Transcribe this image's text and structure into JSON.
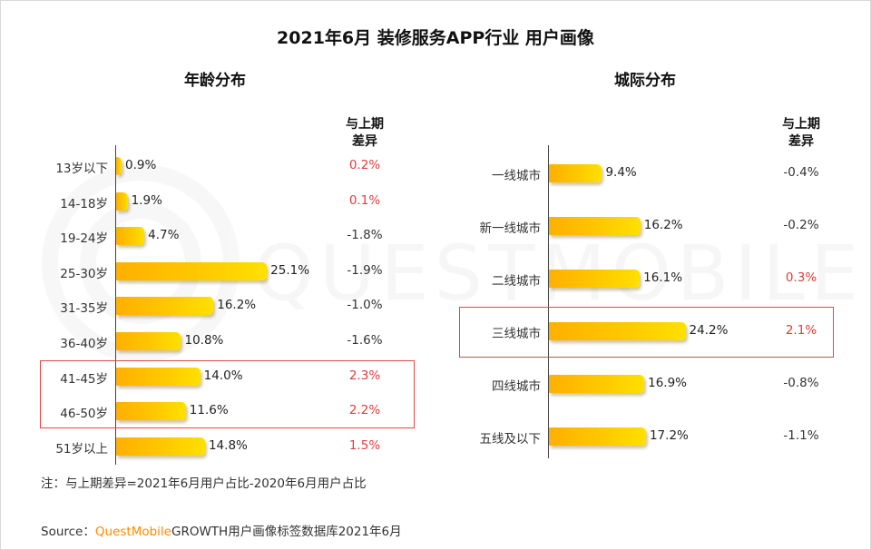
{
  "title": "2021年6月 装修服务APP行业 用户画像",
  "note": "注：与上期差异=2021年6月用户占比-2020年6月用户占比",
  "source": {
    "prefix": "Source：",
    "brand": "QuestMobile",
    "text": "GROWTH用户画像标签数据库2021年6月"
  },
  "watermark": "QUESTMOBILE",
  "colors": {
    "bar_start": "#ffb000",
    "bar_end": "#ffe000",
    "negative": "#333333",
    "positive": "#e03c3c",
    "highlight_border": "#e04848"
  },
  "chart_data": [
    {
      "type": "bar",
      "orientation": "horizontal",
      "title": "年龄分布",
      "diff_header": [
        "与上期",
        "差异"
      ],
      "categories": [
        "13岁以下",
        "14-18岁",
        "19-24岁",
        "25-30岁",
        "31-35岁",
        "36-40岁",
        "41-45岁",
        "46-50岁",
        "51岁以上"
      ],
      "values": [
        0.9,
        1.9,
        4.7,
        25.1,
        16.2,
        10.8,
        14.0,
        11.6,
        14.8
      ],
      "value_labels": [
        "0.9%",
        "1.9%",
        "4.7%",
        "25.1%",
        "16.2%",
        "10.8%",
        "14.0%",
        "11.6%",
        "14.8%"
      ],
      "diff_values": [
        0.2,
        0.1,
        -1.8,
        -1.9,
        -1.0,
        -1.6,
        2.3,
        2.2,
        1.5
      ],
      "diff_labels": [
        "0.2%",
        "0.1%",
        "-1.8%",
        "-1.9%",
        "-1.0%",
        "-1.6%",
        "2.3%",
        "2.2%",
        "1.5%"
      ],
      "highlighted": [
        "41-45岁",
        "46-50岁"
      ],
      "xlim": [
        0,
        30
      ],
      "unit": "%"
    },
    {
      "type": "bar",
      "orientation": "horizontal",
      "title": "城际分布",
      "diff_header": [
        "与上期",
        "差异"
      ],
      "categories": [
        "一线城市",
        "新一线城市",
        "二线城市",
        "三线城市",
        "四线城市",
        "五线及以下"
      ],
      "values": [
        9.4,
        16.2,
        16.1,
        24.2,
        16.9,
        17.2
      ],
      "value_labels": [
        "9.4%",
        "16.2%",
        "16.1%",
        "24.2%",
        "16.9%",
        "17.2%"
      ],
      "diff_values": [
        -0.4,
        -0.2,
        0.3,
        2.1,
        -0.8,
        -1.1
      ],
      "diff_labels": [
        "-0.4%",
        "-0.2%",
        "0.3%",
        "2.1%",
        "-0.8%",
        "-1.1%"
      ],
      "highlighted": [
        "三线城市"
      ],
      "xlim": [
        0,
        30
      ],
      "unit": "%"
    }
  ]
}
